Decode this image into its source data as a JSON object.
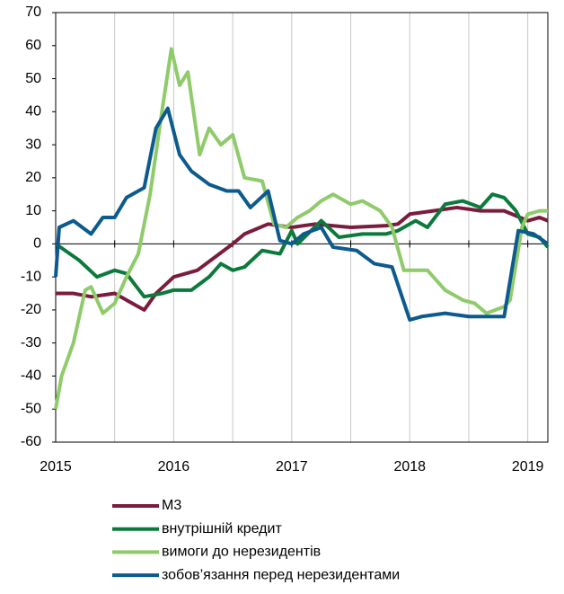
{
  "chart_data": {
    "type": "line",
    "xlim": [
      2015,
      2019.17
    ],
    "xticks": [
      2015,
      2016,
      2017,
      2018,
      2019
    ],
    "xminor": [
      2015.5,
      2016.5,
      2017.5,
      2018.5
    ],
    "ylim": [
      -60,
      70
    ],
    "yticks": [
      -60,
      -50,
      -40,
      -30,
      -20,
      -10,
      0,
      10,
      20,
      30,
      40,
      50,
      60,
      70
    ],
    "grid": true,
    "legend": "bottom",
    "series": [
      {
        "name": "M3",
        "color": "#7b1c3c",
        "x": [
          2015,
          2015.15,
          2015.3,
          2015.5,
          2015.65,
          2015.75,
          2015.85,
          2016,
          2016.2,
          2016.35,
          2016.5,
          2016.6,
          2016.8,
          2017,
          2017.2,
          2017.5,
          2017.8,
          2017.9,
          2018,
          2018.2,
          2018.4,
          2018.6,
          2018.8,
          2019,
          2019.1,
          2019.17
        ],
        "values": [
          -15,
          -15,
          -16,
          -15,
          -18,
          -20,
          -15,
          -10,
          -8,
          -4,
          0,
          3,
          6,
          5,
          6,
          5,
          5.5,
          6,
          9,
          10,
          11,
          10,
          10,
          7,
          8,
          7
        ]
      },
      {
        "name": "внутрішній кредит",
        "color": "#0c7a3c",
        "x": [
          2015,
          2015.2,
          2015.35,
          2015.5,
          2015.6,
          2015.75,
          2015.9,
          2016,
          2016.15,
          2016.3,
          2016.4,
          2016.5,
          2016.6,
          2016.75,
          2016.9,
          2017,
          2017.05,
          2017.25,
          2017.4,
          2017.6,
          2017.8,
          2017.9,
          2018.05,
          2018.15,
          2018.3,
          2018.45,
          2018.6,
          2018.7,
          2018.8,
          2018.9,
          2019,
          2019.1,
          2019.17
        ],
        "values": [
          0,
          -5,
          -10,
          -8,
          -9,
          -16,
          -15,
          -14,
          -14,
          -10,
          -6,
          -8,
          -7,
          -2,
          -3,
          4,
          0,
          7,
          2,
          3,
          3,
          4,
          7,
          5,
          12,
          13,
          11,
          15,
          14,
          10,
          3,
          2,
          -1
        ]
      },
      {
        "name": "вимоги до нерезидентів",
        "color": "#8fcb6a",
        "x": [
          2015,
          2015.05,
          2015.15,
          2015.25,
          2015.3,
          2015.4,
          2015.5,
          2015.6,
          2015.7,
          2015.8,
          2015.9,
          2015.98,
          2016.05,
          2016.12,
          2016.22,
          2016.3,
          2016.4,
          2016.5,
          2016.6,
          2016.75,
          2016.85,
          2016.95,
          2017.05,
          2017.15,
          2017.25,
          2017.35,
          2017.5,
          2017.6,
          2017.75,
          2017.85,
          2017.95,
          2018.05,
          2018.15,
          2018.3,
          2018.45,
          2018.55,
          2018.65,
          2018.8,
          2018.85,
          2018.95,
          2019,
          2019.1,
          2019.17
        ],
        "values": [
          -50,
          -40,
          -30,
          -14,
          -13,
          -21,
          -18,
          -10,
          -3,
          15,
          40,
          59,
          48,
          52,
          27,
          35,
          30,
          33,
          20,
          19,
          6,
          5,
          8,
          10,
          13,
          15,
          12,
          13,
          10,
          5,
          -8,
          -8,
          -8,
          -14,
          -17,
          -18,
          -21,
          -19,
          -17,
          5,
          9,
          10,
          10
        ]
      },
      {
        "name": "зобов’язання перед нерезидентами",
        "color": "#0c5a8e",
        "x": [
          2015,
          2015.03,
          2015.15,
          2015.3,
          2015.4,
          2015.5,
          2015.6,
          2015.75,
          2015.85,
          2015.95,
          2016.05,
          2016.15,
          2016.3,
          2016.45,
          2016.55,
          2016.65,
          2016.8,
          2016.9,
          2017,
          2017.1,
          2017.25,
          2017.35,
          2017.55,
          2017.7,
          2017.85,
          2018,
          2018.1,
          2018.3,
          2018.5,
          2018.65,
          2018.8,
          2018.92,
          2019.05,
          2019.17
        ],
        "values": [
          -10,
          5,
          7,
          3,
          8,
          8,
          14,
          17,
          35,
          41,
          27,
          22,
          18,
          16,
          16,
          11,
          16,
          1,
          0,
          3,
          5,
          -1,
          -2,
          -6,
          -7,
          -23,
          -22,
          -21,
          -22,
          -22,
          -22,
          4,
          3,
          0
        ]
      }
    ]
  }
}
